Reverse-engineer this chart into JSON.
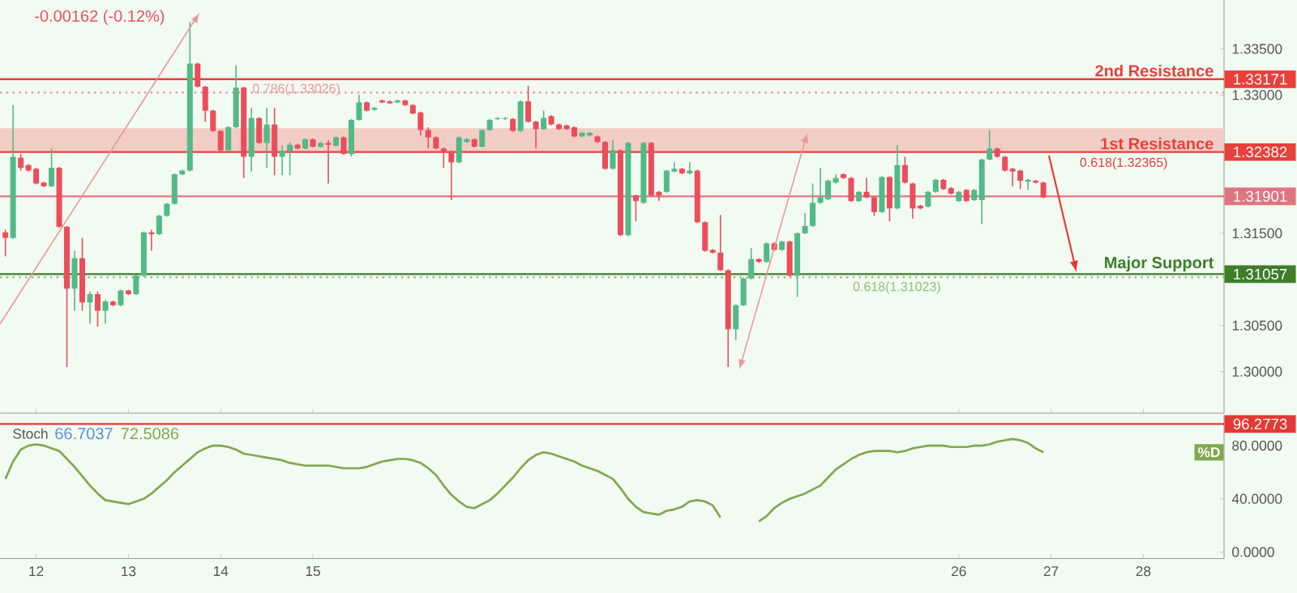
{
  "chart_data": [
    {
      "type": "candlestick",
      "categories": [
        null,
        null,
        null,
        null,
        "12",
        null,
        null,
        null,
        null,
        null,
        null,
        null,
        null,
        null,
        null,
        null,
        "13",
        null,
        null,
        null,
        null,
        null,
        null,
        null,
        null,
        null,
        null,
        null,
        "14",
        null,
        null,
        null,
        null,
        null,
        null,
        null,
        null,
        null,
        null,
        null,
        "15",
        null,
        null,
        null,
        null,
        null,
        null,
        null,
        null,
        null,
        null,
        null,
        null,
        null,
        null,
        null,
        null,
        null,
        null,
        null,
        null,
        null,
        null,
        null,
        null,
        null,
        null,
        null,
        null,
        null,
        null,
        null,
        null,
        null,
        null,
        null,
        null,
        null,
        null,
        null,
        null,
        null,
        null,
        null,
        null,
        null,
        null,
        null,
        null,
        null,
        null,
        null,
        null,
        null,
        null,
        null,
        null,
        null,
        null,
        null,
        null,
        null,
        null,
        null,
        null,
        null,
        null,
        null,
        null,
        null,
        null,
        null,
        null,
        null,
        null,
        null,
        null,
        null,
        null,
        null,
        null,
        null,
        null,
        null,
        "26",
        null,
        null,
        null,
        null,
        null,
        null,
        null,
        null,
        null,
        null,
        null,
        "27",
        null,
        null,
        null,
        null,
        null,
        null,
        null,
        null,
        null,
        null,
        null,
        "28",
        null,
        null,
        null,
        null,
        null,
        null,
        null,
        null,
        null,
        null
      ],
      "ohlc": [
        [
          1.3151,
          1.3154,
          1.3125,
          1.3145
        ],
        [
          1.3145,
          1.3289,
          1.3144,
          1.3233
        ],
        [
          1.3232,
          1.3236,
          1.3218,
          1.3221
        ],
        [
          1.3224,
          1.3225,
          1.3217,
          1.3218
        ],
        [
          1.322,
          1.3221,
          1.3203,
          1.3204
        ],
        [
          1.3205,
          1.3206,
          1.32,
          1.3201
        ],
        [
          1.3201,
          1.3242,
          1.32,
          1.3221
        ],
        [
          1.3221,
          1.3222,
          1.3156,
          1.3157
        ],
        [
          1.3157,
          1.3158,
          1.3005,
          1.309
        ],
        [
          1.309,
          1.3131,
          1.3066,
          1.3123
        ],
        [
          1.3123,
          1.3145,
          1.3066,
          1.3075
        ],
        [
          1.3075,
          1.3087,
          1.3052,
          1.3084
        ],
        [
          1.3084,
          1.3087,
          1.3049,
          1.3066
        ],
        [
          1.3066,
          1.3078,
          1.3052,
          1.3076
        ],
        [
          1.3076,
          1.3077,
          1.3071,
          1.3072
        ],
        [
          1.3072,
          1.3089,
          1.3071,
          1.3088
        ],
        [
          1.3088,
          1.3089,
          1.3083,
          1.3084
        ],
        [
          1.3084,
          1.3105,
          1.3083,
          1.3104
        ],
        [
          1.3104,
          1.3152,
          1.3103,
          1.3151
        ],
        [
          1.3151,
          1.3154,
          1.3131,
          1.3149
        ],
        [
          1.3149,
          1.317,
          1.3148,
          1.3169
        ],
        [
          1.3169,
          1.3183,
          1.3168,
          1.3182
        ],
        [
          1.3182,
          1.3215,
          1.3181,
          1.3214
        ],
        [
          1.3214,
          1.3219,
          1.3213,
          1.3218
        ],
        [
          1.3218,
          1.3379,
          1.3217,
          1.3334
        ],
        [
          1.3334,
          1.3335,
          1.3308,
          1.3309
        ],
        [
          1.3309,
          1.331,
          1.3271,
          1.3283
        ],
        [
          1.3283,
          1.3284,
          1.326,
          1.3261
        ],
        [
          1.3261,
          1.3262,
          1.3239,
          1.324
        ],
        [
          1.324,
          1.3266,
          1.3239,
          1.3265
        ],
        [
          1.3265,
          1.3332,
          1.3264,
          1.3308
        ],
        [
          1.3308,
          1.3309,
          1.321,
          1.3233
        ],
        [
          1.3233,
          1.3286,
          1.3217,
          1.3275
        ],
        [
          1.3275,
          1.3276,
          1.3247,
          1.3248
        ],
        [
          1.3248,
          1.3286,
          1.3221,
          1.3268
        ],
        [
          1.3268,
          1.3286,
          1.3213,
          1.3233
        ],
        [
          1.3233,
          1.3245,
          1.3213,
          1.3239
        ],
        [
          1.3239,
          1.3249,
          1.3213,
          1.3246
        ],
        [
          1.3246,
          1.3247,
          1.3241,
          1.3242
        ],
        [
          1.3242,
          1.3253,
          1.3241,
          1.3252
        ],
        [
          1.3252,
          1.3253,
          1.3243,
          1.3244
        ],
        [
          1.3244,
          1.3249,
          1.3243,
          1.3248
        ],
        [
          1.3248,
          1.3251,
          1.3204,
          1.3246
        ],
        [
          1.3245,
          1.3255,
          1.3244,
          1.3254
        ],
        [
          1.3254,
          1.3255,
          1.3235,
          1.3236
        ],
        [
          1.3236,
          1.3274,
          1.3233,
          1.3273
        ],
        [
          1.3273,
          1.33,
          1.3272,
          1.3292
        ],
        [
          1.3292,
          1.3293,
          1.3282,
          1.3283
        ],
        [
          1.3284,
          1.3287,
          1.3283,
          1.3286
        ],
        [
          1.3294,
          1.3295,
          1.3291,
          1.3292
        ],
        [
          1.3293,
          1.3294,
          1.329,
          1.3291
        ],
        [
          1.3292,
          1.3295,
          1.3291,
          1.3294
        ],
        [
          1.3294,
          1.3295,
          1.3288,
          1.3289
        ],
        [
          1.3289,
          1.329,
          1.3279,
          1.328
        ],
        [
          1.3281,
          1.3282,
          1.3256,
          1.3262
        ],
        [
          1.3262,
          1.3265,
          1.3242,
          1.3254
        ],
        [
          1.3254,
          1.3255,
          1.3241,
          1.3242
        ],
        [
          1.3242,
          1.3243,
          1.3221,
          1.3238
        ],
        [
          1.3239,
          1.324,
          1.3186,
          1.3227
        ],
        [
          1.3227,
          1.3255,
          1.3226,
          1.3254
        ],
        [
          1.3249,
          1.3253,
          1.3248,
          1.3252
        ],
        [
          1.3252,
          1.3253,
          1.3243,
          1.3244
        ],
        [
          1.3244,
          1.3263,
          1.3243,
          1.3262
        ],
        [
          1.3262,
          1.3274,
          1.3261,
          1.3273
        ],
        [
          1.3274,
          1.3276,
          1.3273,
          1.3275
        ],
        [
          1.3274,
          1.3276,
          1.3273,
          1.3275
        ],
        [
          1.3274,
          1.3275,
          1.326,
          1.3261
        ],
        [
          1.3261,
          1.3294,
          1.326,
          1.3293
        ],
        [
          1.3293,
          1.331,
          1.327,
          1.3271
        ],
        [
          1.3271,
          1.3272,
          1.3242,
          1.3263
        ],
        [
          1.3263,
          1.3283,
          1.3262,
          1.3275
        ],
        [
          1.3277,
          1.3278,
          1.3267,
          1.3268
        ],
        [
          1.3268,
          1.3269,
          1.3262,
          1.3263
        ],
        [
          1.3267,
          1.3268,
          1.3262,
          1.3263
        ],
        [
          1.3265,
          1.3266,
          1.3254,
          1.3255
        ],
        [
          1.3255,
          1.326,
          1.3254,
          1.3259
        ],
        [
          1.3256,
          1.326,
          1.3255,
          1.3259
        ],
        [
          1.3255,
          1.3256,
          1.3248,
          1.3249
        ],
        [
          1.3249,
          1.325,
          1.3219,
          1.322
        ],
        [
          1.322,
          1.3251,
          1.3219,
          1.324
        ],
        [
          1.324,
          1.3241,
          1.3147,
          1.3148
        ],
        [
          1.3148,
          1.3249,
          1.3147,
          1.3248
        ],
        [
          1.3191,
          1.3192,
          1.3163,
          1.3185
        ],
        [
          1.3183,
          1.3249,
          1.3182,
          1.3248
        ],
        [
          1.3248,
          1.3249,
          1.319,
          1.3191
        ],
        [
          1.3195,
          1.3196,
          1.3185,
          1.3191
        ],
        [
          1.3195,
          1.3219,
          1.3194,
          1.3218
        ],
        [
          1.3217,
          1.3227,
          1.3216,
          1.322
        ],
        [
          1.322,
          1.3221,
          1.3214,
          1.3215
        ],
        [
          1.3215,
          1.3227,
          1.3214,
          1.3218
        ],
        [
          1.3218,
          1.3219,
          1.3161,
          1.3162
        ],
        [
          1.3162,
          1.3163,
          1.313,
          1.3131
        ],
        [
          1.3132,
          1.3133,
          1.3128,
          1.3129
        ],
        [
          1.3129,
          1.317,
          1.3109,
          1.311
        ],
        [
          1.311,
          1.3111,
          1.3005,
          1.3046
        ],
        [
          1.3046,
          1.3073,
          1.3034,
          1.3072
        ],
        [
          1.3072,
          1.3102,
          1.3071,
          1.3101
        ],
        [
          1.3101,
          1.3134,
          1.31,
          1.3122
        ],
        [
          1.3122,
          1.3123,
          1.3118,
          1.3119
        ],
        [
          1.3119,
          1.314,
          1.3118,
          1.3139
        ],
        [
          1.3139,
          1.314,
          1.3131,
          1.3132
        ],
        [
          1.3132,
          1.3142,
          1.3131,
          1.3141
        ],
        [
          1.3141,
          1.3142,
          1.3103,
          1.3104
        ],
        [
          1.3104,
          1.3151,
          1.3081,
          1.315
        ],
        [
          1.315,
          1.3172,
          1.3149,
          1.3158
        ],
        [
          1.3158,
          1.3204,
          1.3157,
          1.3183
        ],
        [
          1.3183,
          1.3221,
          1.3182,
          1.3189
        ],
        [
          1.3187,
          1.3208,
          1.3186,
          1.3207
        ],
        [
          1.3205,
          1.3214,
          1.3204,
          1.321
        ],
        [
          1.3214,
          1.3215,
          1.3209,
          1.321
        ],
        [
          1.321,
          1.3211,
          1.3184,
          1.3185
        ],
        [
          1.3185,
          1.3196,
          1.3184,
          1.3195
        ],
        [
          1.3195,
          1.321,
          1.3188,
          1.3189
        ],
        [
          1.3189,
          1.319,
          1.3169,
          1.3173
        ],
        [
          1.3173,
          1.3212,
          1.3172,
          1.3211
        ],
        [
          1.3211,
          1.3212,
          1.3163,
          1.3177
        ],
        [
          1.3177,
          1.3246,
          1.3176,
          1.3224
        ],
        [
          1.3224,
          1.3233,
          1.3204,
          1.3205
        ],
        [
          1.3204,
          1.3205,
          1.3166,
          1.3177
        ],
        [
          1.318,
          1.3181,
          1.3176,
          1.3177
        ],
        [
          1.3179,
          1.3196,
          1.3178,
          1.3195
        ],
        [
          1.3195,
          1.3209,
          1.3194,
          1.3208
        ],
        [
          1.3208,
          1.3209,
          1.3197,
          1.3198
        ],
        [
          1.3199,
          1.32,
          1.3192,
          1.3193
        ],
        [
          1.3185,
          1.3196,
          1.3184,
          1.3195
        ],
        [
          1.3197,
          1.3198,
          1.3184,
          1.3185
        ],
        [
          1.3186,
          1.3198,
          1.3185,
          1.3197
        ],
        [
          1.3186,
          1.3231,
          1.316,
          1.323
        ],
        [
          1.323,
          1.3262,
          1.3229,
          1.3242
        ],
        [
          1.3242,
          1.3243,
          1.3232,
          1.3233
        ],
        [
          1.3233,
          1.3234,
          1.3217,
          1.3218
        ],
        [
          1.322,
          1.3221,
          1.3201,
          1.3217
        ],
        [
          1.3218,
          1.3219,
          1.3198,
          1.3207
        ],
        [
          1.3206,
          1.3209,
          1.3197,
          1.3208
        ],
        [
          1.3207,
          1.3208,
          1.3204,
          1.3205
        ],
        [
          1.3205,
          1.3206,
          1.3188,
          1.3189
        ],
        null,
        null,
        null,
        null,
        null,
        null,
        null,
        null,
        null,
        null,
        null,
        null,
        null,
        null,
        null,
        null,
        null,
        null,
        null,
        null,
        null,
        null,
        null
      ],
      "ylim": [
        1.2955,
        1.3403
      ],
      "yticks": [
        {
          "value": 1.3,
          "label": "1.30000"
        },
        {
          "value": 1.305,
          "label": "1.30500"
        },
        {
          "value": 1.315,
          "label": "1.31500"
        },
        {
          "value": 1.33,
          "label": "1.33000"
        },
        {
          "value": 1.335,
          "label": "1.33500"
        }
      ],
      "tick_labels": "y",
      "bands": [
        {
          "axis": "y",
          "from": 1.32382,
          "to": 1.3264,
          "color": "#f2cdc6"
        }
      ],
      "ref_lines": [
        {
          "axis": "y",
          "value": 1.33171,
          "label": "1.33171",
          "color": "#e8403a"
        },
        {
          "axis": "y",
          "value": 1.32382,
          "label": "1.32382",
          "color": "#e8403a"
        },
        {
          "axis": "y",
          "value": 1.31901,
          "label": "1.31901",
          "color": "#e07480"
        },
        {
          "axis": "y",
          "value": 1.31057,
          "label": "1.31057",
          "color": "#3e7d2a"
        },
        {
          "axis": "y",
          "value": 1.33026,
          "color": "#e89a9a",
          "line_style": "dotted"
        },
        {
          "axis": "y",
          "value": 1.31023,
          "color": "#8fbf7a",
          "line_style": "dotted"
        }
      ],
      "annotations": [
        "-0.00162 (-0.12%)",
        {
          "text": "2nd Resistance",
          "y": 1.33171
        },
        {
          "text": "1st Resistance",
          "y": 1.32382
        },
        {
          "text": "Major Support",
          "y": 1.31057
        },
        {
          "text": "0.786(1.33026)",
          "y": 1.33026
        },
        {
          "text": "0.618(1.32365)",
          "y": 1.32365
        },
        {
          "text": "0.618(1.31023)",
          "y": 1.31023
        }
      ]
    },
    {
      "type": "line",
      "title": "Stoch",
      "annotations": [
        "66.7037",
        "72.5086"
      ],
      "categories": [
        null,
        null,
        null,
        null,
        "12",
        null,
        null,
        null,
        null,
        null,
        null,
        null,
        null,
        null,
        null,
        null,
        "13",
        null,
        null,
        null,
        null,
        null,
        null,
        null,
        null,
        null,
        null,
        null,
        "14",
        null,
        null,
        null,
        null,
        null,
        null,
        null,
        null,
        null,
        null,
        null,
        "15",
        null,
        null,
        null,
        null,
        null,
        null,
        null,
        null,
        null,
        null,
        null,
        null,
        null,
        null,
        null,
        null,
        null,
        null,
        null,
        null,
        null,
        null,
        null,
        null,
        null,
        null,
        null,
        null,
        null,
        null,
        null,
        null,
        null,
        null,
        null,
        null,
        null,
        null,
        null,
        null,
        null,
        null,
        null,
        null,
        null,
        null,
        null,
        null,
        null,
        null,
        null,
        null,
        null,
        null,
        null,
        null,
        null,
        null,
        null,
        null,
        null,
        null,
        null,
        null,
        null,
        null,
        null,
        null,
        null,
        null,
        null,
        null,
        null,
        null,
        null,
        null,
        null,
        null,
        null,
        null,
        null,
        null,
        null,
        "26",
        null,
        null,
        null,
        null,
        null,
        null,
        null,
        null,
        null,
        null,
        null,
        "27",
        null,
        null,
        null,
        null,
        null,
        null,
        null,
        null,
        null,
        null,
        null,
        "28",
        null,
        null,
        null,
        null,
        null,
        null,
        null,
        null,
        null,
        null
      ],
      "series": [
        {
          "name": "%D",
          "color": "#7fa84e",
          "values": [
            55,
            68,
            77,
            80,
            81,
            80,
            78,
            76,
            70,
            64,
            57,
            50,
            44,
            39,
            38,
            37,
            36,
            38,
            40,
            44,
            49,
            54,
            60,
            65,
            70,
            75,
            78,
            80,
            80,
            79,
            77,
            74,
            73,
            72,
            71,
            70,
            69,
            67,
            66,
            65,
            65,
            65,
            65,
            64,
            63,
            63,
            63,
            64,
            66,
            68,
            69,
            70,
            70,
            69,
            67,
            63,
            58,
            50,
            43,
            38,
            34,
            33,
            36,
            39,
            44,
            50,
            56,
            63,
            69,
            73,
            75,
            74,
            72,
            70,
            68,
            65,
            63,
            61,
            58,
            55,
            48,
            40,
            34,
            30,
            29,
            28,
            31,
            32,
            34,
            38,
            39,
            38,
            35,
            26,
            null,
            null,
            null,
            null,
            23,
            27,
            33,
            37,
            40,
            42,
            44,
            47,
            50,
            56,
            62,
            66,
            70,
            73,
            75,
            76,
            76,
            76,
            75,
            76,
            78,
            79,
            80,
            80,
            80,
            79,
            79,
            79,
            80,
            80,
            81,
            83,
            84,
            85,
            84,
            82,
            78,
            75,
            null,
            null,
            null,
            null,
            null,
            null,
            null,
            null,
            null,
            null,
            null,
            null,
            null,
            null,
            null,
            null,
            null,
            null,
            null,
            null,
            null,
            null,
            null
          ]
        }
      ],
      "ylim": [
        -5,
        103
      ],
      "yticks": [
        {
          "value": 0,
          "label": "0.0000"
        },
        {
          "value": 40,
          "label": "40.0000"
        },
        {
          "value": 80,
          "label": "80.0000"
        }
      ],
      "ref_lines": [
        {
          "axis": "y",
          "value": 96.2773,
          "label": "96.2773",
          "color": "#e53935"
        }
      ]
    }
  ]
}
